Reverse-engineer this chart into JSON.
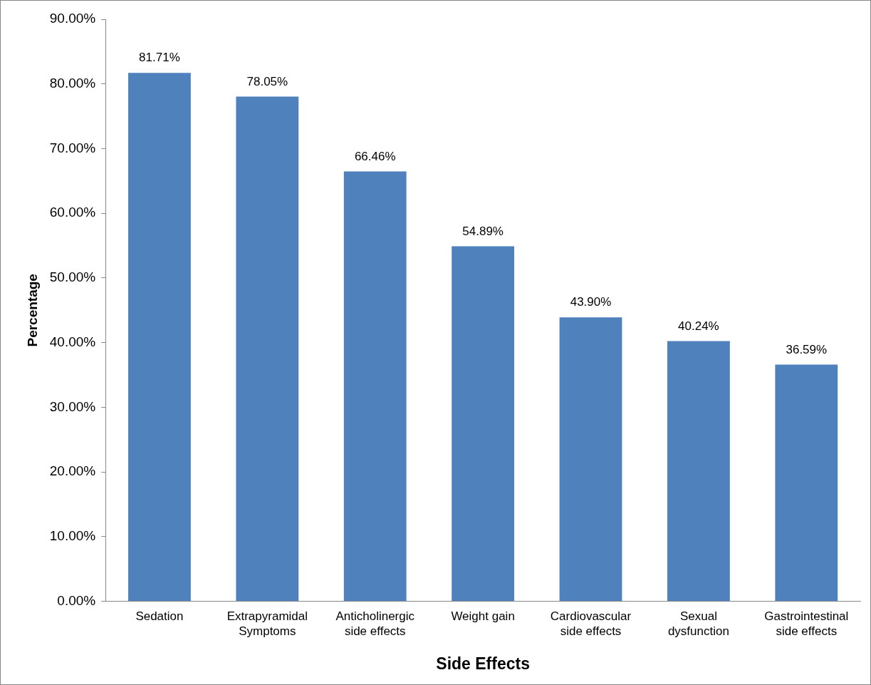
{
  "chart_data": {
    "type": "bar",
    "xlabel": "Side Effects",
    "ylabel": "Percentage",
    "categories": [
      "Sedation",
      "Extrapyramidal\nSymptoms",
      "Anticholinergic\nside effects",
      "Weight gain",
      "Cardiovascular\nside effects",
      "Sexual\ndysfunction",
      "Gastrointestinal\nside effects"
    ],
    "values": [
      81.71,
      78.05,
      66.46,
      54.89,
      43.9,
      40.24,
      36.59
    ],
    "value_labels": [
      "81.71%",
      "78.05%",
      "66.46%",
      "54.89%",
      "43.90%",
      "40.24%",
      "36.59%"
    ],
    "color": "#4f81bd",
    "ylim": [
      0,
      90
    ],
    "yticks": [
      {
        "value": 0,
        "label": "0.00%"
      },
      {
        "value": 10,
        "label": "10.00%"
      },
      {
        "value": 20,
        "label": "20.00%"
      },
      {
        "value": 30,
        "label": "30.00%"
      },
      {
        "value": 40,
        "label": "40.00%"
      },
      {
        "value": 50,
        "label": "50.00%"
      },
      {
        "value": 60,
        "label": "60.00%"
      },
      {
        "value": 70,
        "label": "70.00%"
      },
      {
        "value": 80,
        "label": "80.00%"
      },
      {
        "value": 90,
        "label": "90.00%"
      }
    ],
    "grid": false,
    "legend": false
  }
}
